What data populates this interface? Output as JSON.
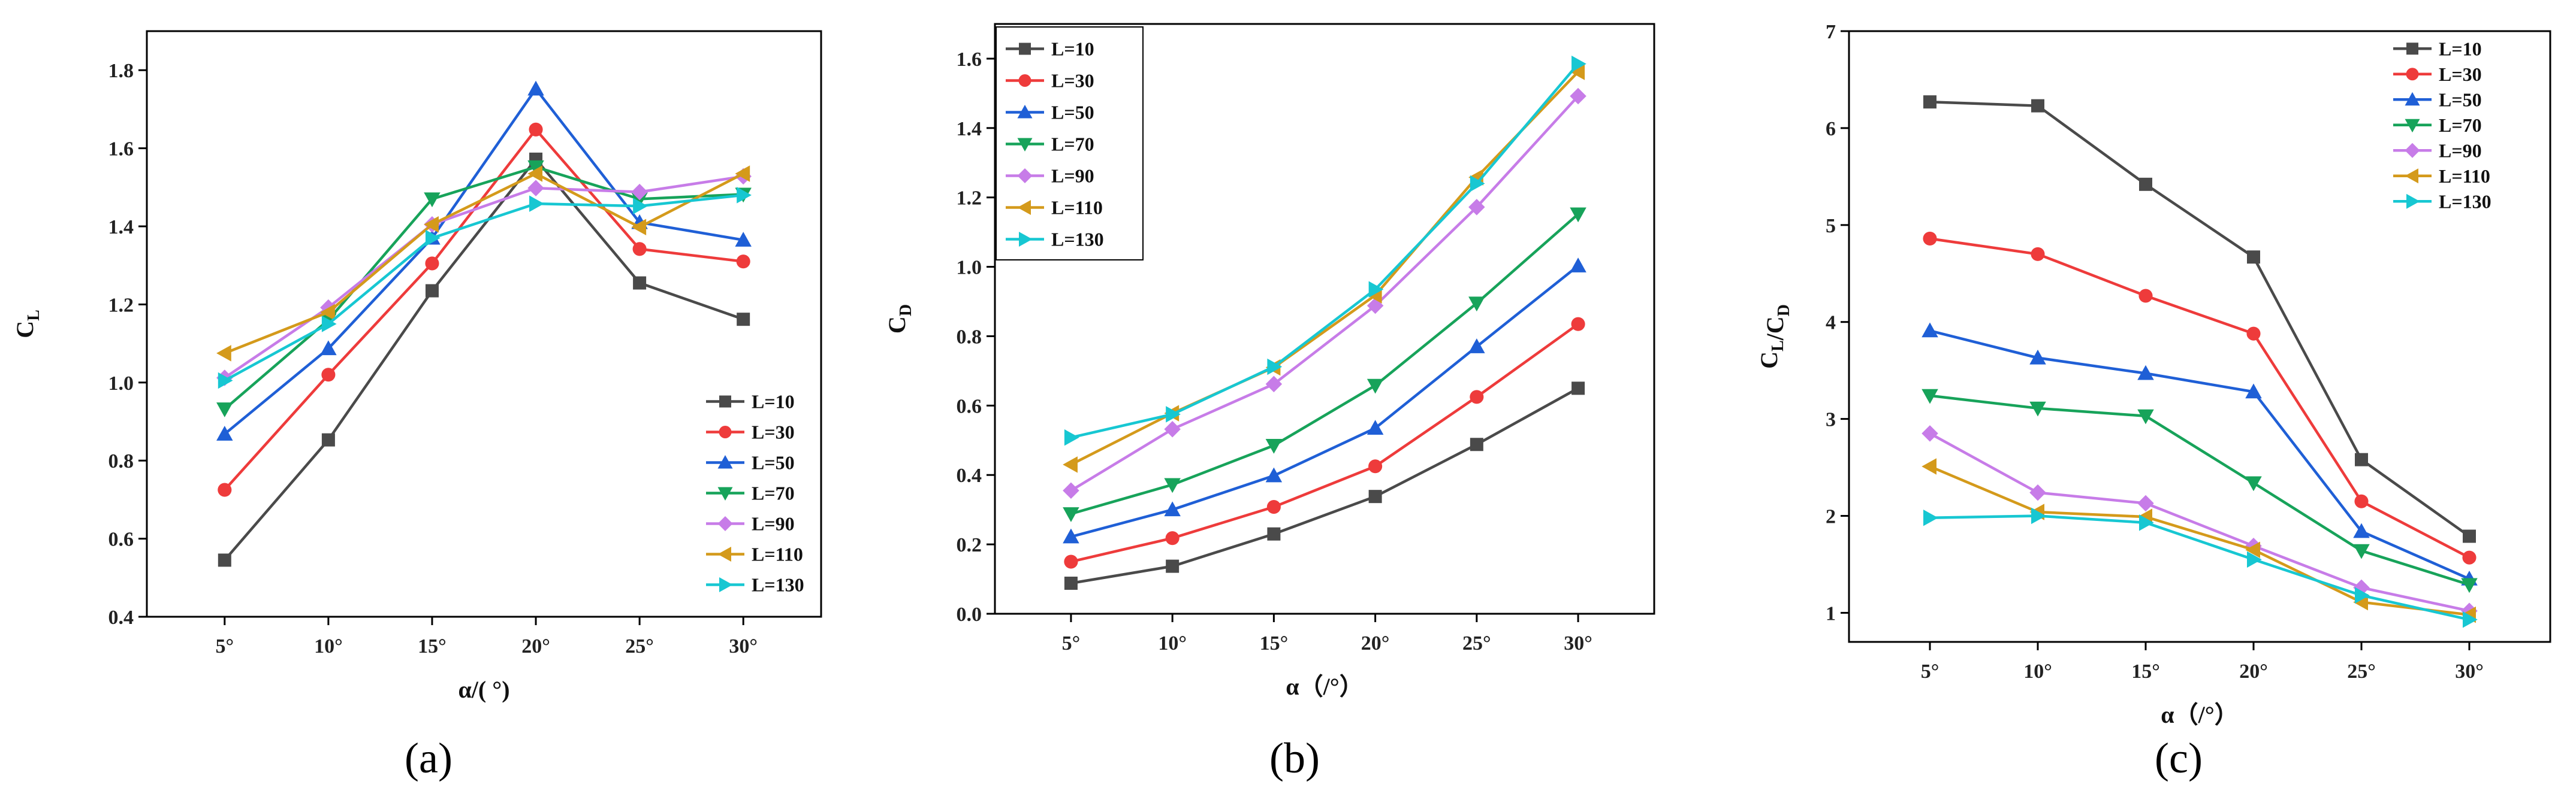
{
  "colors": {
    "L=10": "#4a4a4a",
    "L=30": "#ee3b3b",
    "L=50": "#1f5fd6",
    "L=70": "#17a35a",
    "L=90": "#c77ce8",
    "L=110": "#d49a1b",
    "L=130": "#17c7d2"
  },
  "markers": {
    "L=10": "square",
    "L=30": "circle",
    "L=50": "triangle-up",
    "L=70": "triangle-down",
    "L=90": "diamond",
    "L=110": "triangle-left",
    "L=130": "triangle-right"
  },
  "chart_data": [
    {
      "type": "line",
      "panel_label": "(a)",
      "title": "",
      "xlabel": "α/( °)",
      "ylabel": "C_L",
      "categories": [
        "5°",
        "10°",
        "15°",
        "20°",
        "25°",
        "30°"
      ],
      "ylim": [
        0.4,
        1.9
      ],
      "yticks": [
        "0.4",
        "0.6",
        "0.8",
        "1.0",
        "1.2",
        "1.4",
        "1.6",
        "1.8"
      ],
      "legend_position": "bottom-right",
      "series": [
        {
          "name": "L=10",
          "values": [
            0.545,
            0.853,
            1.235,
            1.572,
            1.255,
            1.162
          ]
        },
        {
          "name": "L=30",
          "values": [
            0.725,
            1.02,
            1.305,
            1.648,
            1.342,
            1.31
          ]
        },
        {
          "name": "L=50",
          "values": [
            0.868,
            1.087,
            1.37,
            1.752,
            1.41,
            1.365
          ]
        },
        {
          "name": "L=70",
          "values": [
            0.932,
            1.16,
            1.47,
            1.552,
            1.47,
            1.482
          ]
        },
        {
          "name": "L=90",
          "values": [
            1.012,
            1.192,
            1.405,
            1.498,
            1.488,
            1.528
          ]
        },
        {
          "name": "L=110",
          "values": [
            1.075,
            1.18,
            1.405,
            1.535,
            1.398,
            1.535
          ]
        },
        {
          "name": "L=130",
          "values": [
            1.005,
            1.15,
            1.37,
            1.458,
            1.452,
            1.48
          ]
        }
      ]
    },
    {
      "type": "line",
      "panel_label": "(b)",
      "title": "",
      "xlabel": "α（/°）",
      "ylabel": "C_D",
      "categories": [
        "5°",
        "10°",
        "15°",
        "20°",
        "25°",
        "30°"
      ],
      "ylim": [
        0.0,
        1.7
      ],
      "yticks": [
        "0.0",
        "0.2",
        "0.4",
        "0.6",
        "0.8",
        "1.0",
        "1.2",
        "1.4",
        "1.6"
      ],
      "legend_position": "top-left",
      "series": [
        {
          "name": "L=10",
          "values": [
            0.088,
            0.137,
            0.23,
            0.338,
            0.488,
            0.65
          ]
        },
        {
          "name": "L=30",
          "values": [
            0.15,
            0.218,
            0.308,
            0.425,
            0.625,
            0.835
          ]
        },
        {
          "name": "L=50",
          "values": [
            0.222,
            0.3,
            0.398,
            0.535,
            0.77,
            1.003
          ]
        },
        {
          "name": "L=70",
          "values": [
            0.288,
            0.372,
            0.485,
            0.658,
            0.895,
            1.152
          ]
        },
        {
          "name": "L=90",
          "values": [
            0.355,
            0.532,
            0.662,
            0.888,
            1.172,
            1.492
          ]
        },
        {
          "name": "L=110",
          "values": [
            0.43,
            0.578,
            0.71,
            0.918,
            1.258,
            1.562
          ]
        },
        {
          "name": "L=130",
          "values": [
            0.508,
            0.575,
            0.712,
            0.935,
            1.24,
            1.585
          ]
        }
      ]
    },
    {
      "type": "line",
      "panel_label": "(c)",
      "title": "",
      "xlabel": "α（/°）",
      "ylabel": "C_L/C_D",
      "categories": [
        "5°",
        "10°",
        "15°",
        "20°",
        "25°",
        "30°"
      ],
      "ylim": [
        0.7,
        7.0
      ],
      "yticks": [
        "1",
        "2",
        "3",
        "4",
        "5",
        "6",
        "7"
      ],
      "legend_position": "top-right",
      "series": [
        {
          "name": "L=10",
          "values": [
            6.27,
            6.23,
            5.42,
            4.67,
            2.58,
            1.79
          ]
        },
        {
          "name": "L=30",
          "values": [
            4.86,
            4.7,
            4.27,
            3.88,
            2.15,
            1.57
          ]
        },
        {
          "name": "L=50",
          "values": [
            3.91,
            3.63,
            3.47,
            3.28,
            1.84,
            1.35
          ]
        },
        {
          "name": "L=70",
          "values": [
            3.24,
            3.11,
            3.03,
            2.34,
            1.64,
            1.29
          ]
        },
        {
          "name": "L=90",
          "values": [
            2.85,
            2.24,
            2.13,
            1.69,
            1.26,
            1.02
          ]
        },
        {
          "name": "L=110",
          "values": [
            2.51,
            2.04,
            1.99,
            1.65,
            1.11,
            0.98
          ]
        },
        {
          "name": "L=130",
          "values": [
            1.98,
            2.0,
            1.93,
            1.55,
            1.18,
            0.93
          ]
        }
      ]
    }
  ]
}
